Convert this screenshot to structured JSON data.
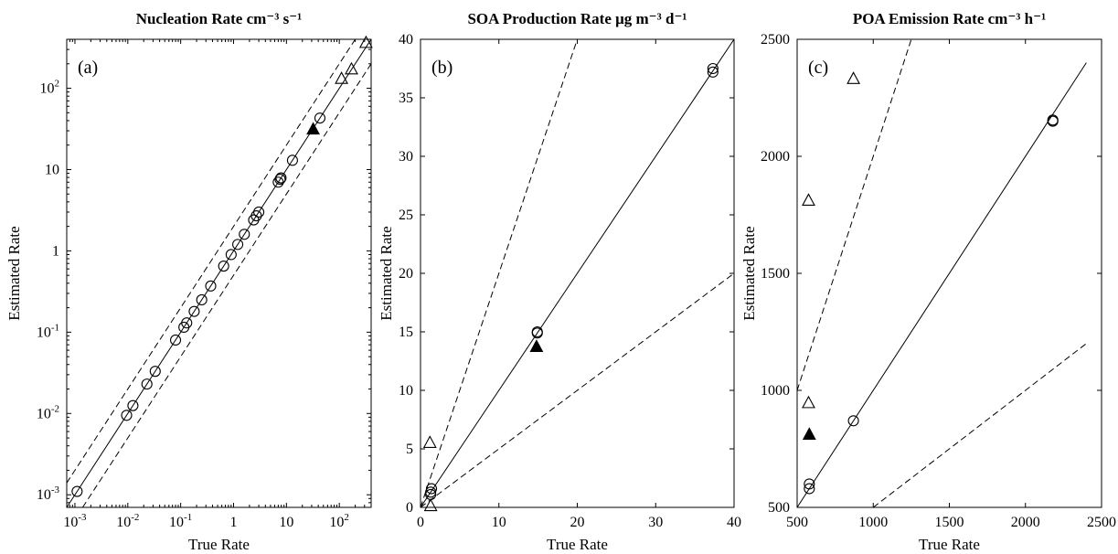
{
  "chart_data": [
    {
      "type": "scatter",
      "panel_label": "(a)",
      "title": "Nucleation Rate cm⁻³ s⁻¹",
      "xlabel": "True Rate",
      "ylabel": "Estimated Rate",
      "xscale": "log",
      "yscale": "log",
      "xlim": [
        0.0007,
        400
      ],
      "ylim": [
        0.0007,
        400
      ],
      "x_ticks": [
        0.001,
        0.01,
        0.1,
        1,
        10,
        100
      ],
      "x_tick_labels": [
        {
          "base": "10",
          "exp": "-3"
        },
        {
          "base": "10",
          "exp": "-2"
        },
        {
          "base": "10",
          "exp": "-1"
        },
        {
          "base": "1",
          "exp": ""
        },
        {
          "base": "10",
          "exp": ""
        },
        {
          "base": "10",
          "exp": "2"
        }
      ],
      "y_ticks": [
        0.001,
        0.01,
        0.1,
        1,
        10,
        100
      ],
      "y_tick_labels": [
        {
          "base": "10",
          "exp": "-3"
        },
        {
          "base": "10",
          "exp": "-2"
        },
        {
          "base": "10",
          "exp": "-1"
        },
        {
          "base": "1",
          "exp": ""
        },
        {
          "base": "10",
          "exp": ""
        },
        {
          "base": "10",
          "exp": "2"
        }
      ],
      "grid": false,
      "reference_lines": [
        {
          "style": "solid",
          "points": [
            [
              0.0007,
              0.0007
            ],
            [
              400,
              400
            ]
          ]
        },
        {
          "style": "dashed",
          "points": [
            [
              0.0007,
              0.0014
            ],
            [
              200,
              400
            ]
          ]
        },
        {
          "style": "dashed",
          "points": [
            [
              0.0014,
              0.0007
            ],
            [
              400,
              200
            ]
          ]
        }
      ],
      "series": [
        {
          "marker": "circle-open",
          "points": [
            [
              0.0011,
              0.0011
            ],
            [
              0.0095,
              0.0095
            ],
            [
              0.0125,
              0.0125
            ],
            [
              0.023,
              0.023
            ],
            [
              0.033,
              0.033
            ],
            [
              0.08,
              0.08
            ],
            [
              0.115,
              0.115
            ],
            [
              0.13,
              0.13
            ],
            [
              0.18,
              0.18
            ],
            [
              0.25,
              0.25
            ],
            [
              0.37,
              0.37
            ],
            [
              0.65,
              0.65
            ],
            [
              0.9,
              0.9
            ],
            [
              1.2,
              1.2
            ],
            [
              1.6,
              1.6
            ],
            [
              2.4,
              2.4
            ],
            [
              2.7,
              2.7
            ],
            [
              3.0,
              3.0
            ],
            [
              7.0,
              7.0
            ],
            [
              7.6,
              7.6
            ],
            [
              7.9,
              7.9
            ],
            [
              13,
              13
            ],
            [
              43,
              43
            ]
          ]
        },
        {
          "marker": "triangle-filled",
          "points": [
            [
              32,
              31
            ]
          ]
        },
        {
          "marker": "triangle-open",
          "points": [
            [
              110,
              130
            ],
            [
              170,
              170
            ],
            [
              320,
              360
            ]
          ]
        }
      ]
    },
    {
      "type": "scatter",
      "panel_label": "(b)",
      "title": "SOA Production Rate μg m⁻³ d⁻¹",
      "xlabel": "True Rate",
      "ylabel": "Estimated Rate",
      "xscale": "linear",
      "yscale": "linear",
      "xlim": [
        0,
        40
      ],
      "ylim": [
        0,
        40
      ],
      "x_ticks": [
        0,
        10,
        20,
        30,
        40
      ],
      "x_tick_labels": [
        {
          "base": "0",
          "exp": ""
        },
        {
          "base": "10",
          "exp": ""
        },
        {
          "base": "20",
          "exp": ""
        },
        {
          "base": "30",
          "exp": ""
        },
        {
          "base": "40",
          "exp": ""
        }
      ],
      "y_ticks": [
        0,
        5,
        10,
        15,
        20,
        25,
        30,
        35,
        40
      ],
      "y_tick_labels": [
        {
          "base": "0",
          "exp": ""
        },
        {
          "base": "5",
          "exp": ""
        },
        {
          "base": "10",
          "exp": ""
        },
        {
          "base": "15",
          "exp": ""
        },
        {
          "base": "20",
          "exp": ""
        },
        {
          "base": "25",
          "exp": ""
        },
        {
          "base": "30",
          "exp": ""
        },
        {
          "base": "35",
          "exp": ""
        },
        {
          "base": "40",
          "exp": ""
        }
      ],
      "grid": false,
      "reference_lines": [
        {
          "style": "solid",
          "points": [
            [
              0,
              0
            ],
            [
              40,
              40
            ]
          ]
        },
        {
          "style": "dashed",
          "points": [
            [
              0,
              0
            ],
            [
              20,
              40
            ]
          ]
        },
        {
          "style": "dashed",
          "points": [
            [
              0,
              0
            ],
            [
              40,
              20
            ]
          ]
        }
      ],
      "series": [
        {
          "marker": "circle-open",
          "points": [
            [
              1.3,
              1.3
            ],
            [
              1.4,
              1.6
            ],
            [
              1.3,
              1.1
            ],
            [
              14.9,
              15.0
            ],
            [
              14.9,
              14.9
            ],
            [
              37.3,
              37.2
            ],
            [
              37.3,
              37.5
            ]
          ]
        },
        {
          "marker": "triangle-filled",
          "points": [
            [
              14.8,
              13.7
            ]
          ]
        },
        {
          "marker": "triangle-open",
          "points": [
            [
              1.2,
              5.5
            ],
            [
              1.3,
              0.1
            ]
          ]
        }
      ]
    },
    {
      "type": "scatter",
      "panel_label": "(c)",
      "title": "POA Emission Rate cm⁻³ h⁻¹",
      "xlabel": "True Rate",
      "ylabel": "Estimated Rate",
      "xscale": "linear",
      "yscale": "linear",
      "xlim": [
        500,
        2500
      ],
      "ylim": [
        500,
        2500
      ],
      "x_ticks": [
        500,
        1000,
        1500,
        2000,
        2500
      ],
      "x_tick_labels": [
        {
          "base": "500",
          "exp": ""
        },
        {
          "base": "1000",
          "exp": ""
        },
        {
          "base": "1500",
          "exp": ""
        },
        {
          "base": "2000",
          "exp": ""
        },
        {
          "base": "2500",
          "exp": ""
        }
      ],
      "y_ticks": [
        500,
        1000,
        1500,
        2000,
        2500
      ],
      "y_tick_labels": [
        {
          "base": "500",
          "exp": ""
        },
        {
          "base": "1000",
          "exp": ""
        },
        {
          "base": "1500",
          "exp": ""
        },
        {
          "base": "2000",
          "exp": ""
        },
        {
          "base": "2500",
          "exp": ""
        }
      ],
      "grid": false,
      "reference_lines": [
        {
          "style": "solid",
          "points": [
            [
              500,
              500
            ],
            [
              2400,
              2400
            ]
          ]
        },
        {
          "style": "dashed",
          "points": [
            [
              500,
              1000
            ],
            [
              1250,
              2500
            ]
          ]
        },
        {
          "style": "dashed",
          "points": [
            [
              1000,
              500
            ],
            [
              2400,
              1200
            ]
          ]
        }
      ],
      "series": [
        {
          "marker": "circle-open",
          "points": [
            [
              580,
              580
            ],
            [
              580,
              600
            ],
            [
              870,
              870
            ],
            [
              2180,
              2150
            ],
            [
              2180,
              2155
            ]
          ]
        },
        {
          "marker": "triangle-filled",
          "points": [
            [
              580,
              810
            ]
          ]
        },
        {
          "marker": "triangle-open",
          "points": [
            [
              575,
              1810
            ],
            [
              575,
              945
            ],
            [
              870,
              2330
            ]
          ]
        }
      ]
    }
  ]
}
